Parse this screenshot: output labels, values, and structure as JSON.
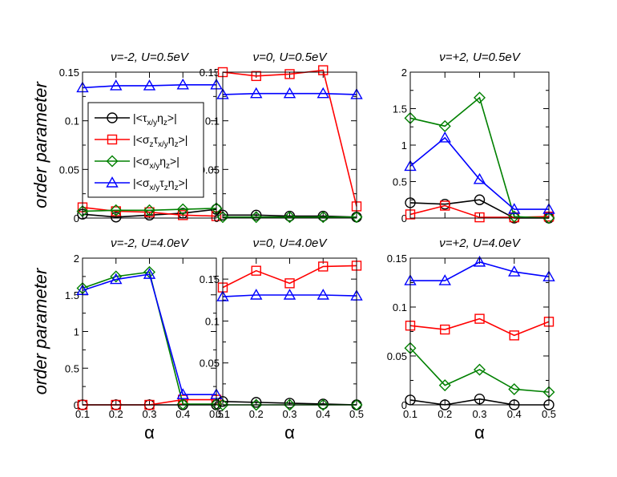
{
  "chart_data": [
    {
      "type": "line",
      "title": "ν=-2, U=0.5eV",
      "xlabel": "",
      "ylabel": "order parameter",
      "x": [
        0.1,
        0.2,
        0.3,
        0.4,
        0.5
      ],
      "xlim": [
        0.1,
        0.5
      ],
      "ylim": [
        0,
        0.15
      ],
      "xticks": [],
      "yticks": [
        "0",
        "0.05",
        "0.1",
        "0.15"
      ],
      "yticks_values": [
        0,
        0.05,
        0.1,
        0.15
      ],
      "series": [
        {
          "name": "s1",
          "values": [
            0.004,
            0.001,
            0.003,
            0.005,
            0.009
          ]
        },
        {
          "name": "s2",
          "values": [
            0.011,
            0.007,
            0.006,
            0.003,
            0.002
          ]
        },
        {
          "name": "s3",
          "values": [
            0.007,
            0.008,
            0.008,
            0.009,
            0.01
          ]
        },
        {
          "name": "s4",
          "values": [
            0.134,
            0.136,
            0.136,
            0.137,
            0.137
          ]
        }
      ]
    },
    {
      "type": "line",
      "title": "ν=0, U=0.5eV",
      "xlabel": "",
      "ylabel": "",
      "x": [
        0.1,
        0.2,
        0.3,
        0.4,
        0.5
      ],
      "xlim": [
        0.1,
        0.5
      ],
      "ylim": [
        0,
        0.15
      ],
      "xticks": [],
      "yticks": [
        "0",
        "0.05",
        "0.1",
        "0.15"
      ],
      "yticks_values": [
        0,
        0.05,
        0.1,
        0.15
      ],
      "series": [
        {
          "name": "s1",
          "values": [
            0.003,
            0.003,
            0.002,
            0.002,
            0.001
          ]
        },
        {
          "name": "s2",
          "values": [
            0.15,
            0.146,
            0.148,
            0.152,
            0.012
          ]
        },
        {
          "name": "s3",
          "values": [
            0.001,
            0.001,
            0.001,
            0.001,
            0.001
          ]
        },
        {
          "name": "s4",
          "values": [
            0.127,
            0.128,
            0.128,
            0.128,
            0.127
          ]
        }
      ]
    },
    {
      "type": "line",
      "title": "ν=+2, U=0.5eV",
      "xlabel": "",
      "ylabel": "",
      "x": [
        0.1,
        0.2,
        0.3,
        0.4,
        0.5
      ],
      "xlim": [
        0.1,
        0.5
      ],
      "ylim": [
        0,
        2
      ],
      "xticks": [],
      "yticks": [
        "0",
        "0.5",
        "1",
        "1.5",
        "2"
      ],
      "yticks_values": [
        0,
        0.5,
        1,
        1.5,
        2
      ],
      "series": [
        {
          "name": "s1",
          "values": [
            0.21,
            0.19,
            0.25,
            0.0,
            0.0
          ]
        },
        {
          "name": "s2",
          "values": [
            0.05,
            0.17,
            0.01,
            0.01,
            0.02
          ]
        },
        {
          "name": "s3",
          "values": [
            1.37,
            1.26,
            1.65,
            0.02,
            0.0
          ]
        },
        {
          "name": "s4",
          "values": [
            0.71,
            1.1,
            0.53,
            0.12,
            0.12
          ]
        }
      ]
    },
    {
      "type": "line",
      "title": "ν=-2, U=4.0eV",
      "xlabel": "α",
      "ylabel": "order parameter",
      "x": [
        0.1,
        0.2,
        0.3,
        0.4,
        0.5
      ],
      "xlim": [
        0.1,
        0.5
      ],
      "ylim": [
        0,
        2
      ],
      "xticks": [
        "0.1",
        "0.2",
        "0.3",
        "0.4",
        "0.5"
      ],
      "yticks": [
        "0",
        "0.5",
        "1",
        "1.5",
        "2"
      ],
      "yticks_values": [
        0,
        0.5,
        1,
        1.5,
        2
      ],
      "series": [
        {
          "name": "s1",
          "values": [
            0.0,
            0.0,
            0.0,
            0.0,
            0.0
          ]
        },
        {
          "name": "s2",
          "values": [
            0.0,
            0.0,
            0.0,
            0.07,
            0.07
          ]
        },
        {
          "name": "s3",
          "values": [
            1.59,
            1.75,
            1.81,
            0.01,
            0.01
          ]
        },
        {
          "name": "s4",
          "values": [
            1.56,
            1.71,
            1.78,
            0.14,
            0.14
          ]
        }
      ]
    },
    {
      "type": "line",
      "title": "ν=0, U=4.0eV",
      "xlabel": "α",
      "ylabel": "",
      "x": [
        0.1,
        0.2,
        0.3,
        0.4,
        0.5
      ],
      "xlim": [
        0.1,
        0.5
      ],
      "ylim": [
        0,
        0.175
      ],
      "xticks": [
        "0.1",
        "0.2",
        "0.3",
        "0.4",
        "0.5"
      ],
      "yticks": [
        "0",
        "0.05",
        "0.1",
        "0.15"
      ],
      "yticks_values": [
        0,
        0.05,
        0.1,
        0.15
      ],
      "series": [
        {
          "name": "s1",
          "values": [
            0.004,
            0.003,
            0.002,
            0.001,
            0.0
          ]
        },
        {
          "name": "s2",
          "values": [
            0.14,
            0.16,
            0.145,
            0.165,
            0.166
          ]
        },
        {
          "name": "s3",
          "values": [
            0.0,
            0.0,
            0.0,
            0.0,
            0.0
          ]
        },
        {
          "name": "s4",
          "values": [
            0.129,
            0.131,
            0.131,
            0.131,
            0.13
          ]
        }
      ]
    },
    {
      "type": "line",
      "title": "ν=+2, U=4.0eV",
      "xlabel": "α",
      "ylabel": "",
      "x": [
        0.1,
        0.2,
        0.3,
        0.4,
        0.5
      ],
      "xlim": [
        0.1,
        0.5
      ],
      "ylim": [
        0,
        0.15
      ],
      "xticks": [
        "0.1",
        "0.2",
        "0.3",
        "0.4",
        "0.5"
      ],
      "yticks": [
        "0",
        "0.05",
        "0.1",
        "0.15"
      ],
      "yticks_values": [
        0,
        0.05,
        0.1,
        0.15
      ],
      "series": [
        {
          "name": "s1",
          "values": [
            0.005,
            0.0,
            0.006,
            0.0,
            0.0
          ]
        },
        {
          "name": "s2",
          "values": [
            0.081,
            0.077,
            0.088,
            0.071,
            0.085
          ]
        },
        {
          "name": "s3",
          "values": [
            0.058,
            0.02,
            0.036,
            0.016,
            0.013
          ]
        },
        {
          "name": "s4",
          "values": [
            0.127,
            0.127,
            0.146,
            0.136,
            0.131
          ]
        }
      ]
    }
  ],
  "legend": {
    "placement": "inside-left of first panel",
    "entries": [
      {
        "series": "s1",
        "prefix": "|<τ",
        "sub1": "x/y",
        "mid": "η",
        "sub2": "z",
        "suffix": ">|"
      },
      {
        "series": "s2",
        "prefix": "|<σ",
        "sub1": "z",
        "mid": "τ",
        "sub2": "x/y",
        "mid2": "η",
        "sub3": "z",
        "suffix": ">|"
      },
      {
        "series": "s3",
        "prefix": "|<σ",
        "sub1": "x/y",
        "mid": "η",
        "sub2": "z",
        "suffix": ">|"
      },
      {
        "series": "s4",
        "prefix": "|<σ",
        "sub1": "x/y",
        "mid": "τ",
        "sub2": "z",
        "mid2": "η",
        "sub3": "z",
        "suffix": ">|"
      }
    ]
  },
  "series_styles": {
    "s1": {
      "color": "#000000",
      "marker": "circle"
    },
    "s2": {
      "color": "#ff0000",
      "marker": "square"
    },
    "s3": {
      "color": "#008000",
      "marker": "diamond"
    },
    "s4": {
      "color": "#0000ff",
      "marker": "triangle"
    }
  }
}
